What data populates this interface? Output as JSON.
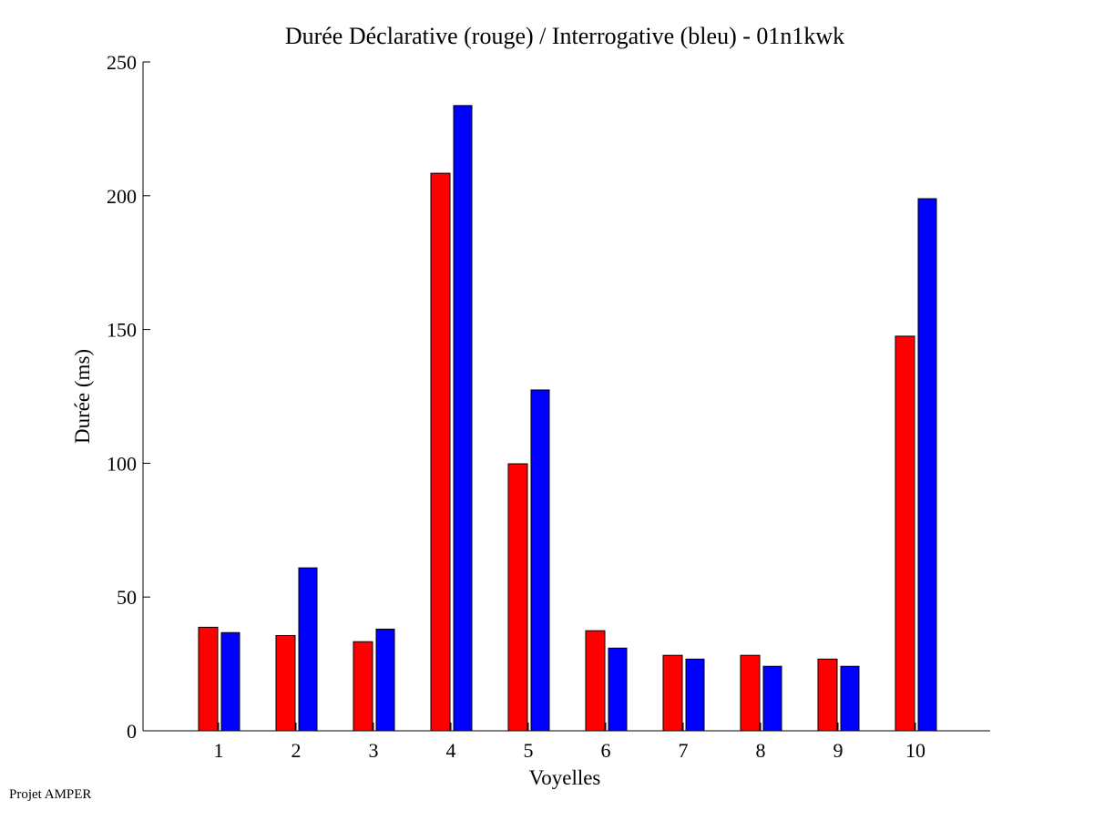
{
  "chart_data": {
    "type": "bar",
    "title": "Durée Déclarative (rouge) / Interrogative (bleu) - 01n1kwk",
    "xlabel": "Voyelles",
    "ylabel": "Durée (ms)",
    "categories": [
      "1",
      "2",
      "3",
      "4",
      "5",
      "6",
      "7",
      "8",
      "9",
      "10"
    ],
    "xlim": [
      0,
      11
    ],
    "ylim": [
      0,
      250
    ],
    "yticks": [
      0,
      50,
      100,
      150,
      200,
      250
    ],
    "grid": false,
    "series": [
      {
        "name": "Déclarative (rouge)",
        "color": "#ff0000",
        "values": [
          38.7,
          35.6,
          33.3,
          208.4,
          99.8,
          37.4,
          28.2,
          28.2,
          26.8,
          147.5
        ]
      },
      {
        "name": "Interrogative (bleu)",
        "color": "#0000ff",
        "values": [
          36.7,
          60.9,
          38.0,
          233.7,
          127.4,
          30.9,
          26.8,
          24.1,
          24.1,
          198.9
        ]
      }
    ]
  },
  "footer": "Projet AMPER"
}
